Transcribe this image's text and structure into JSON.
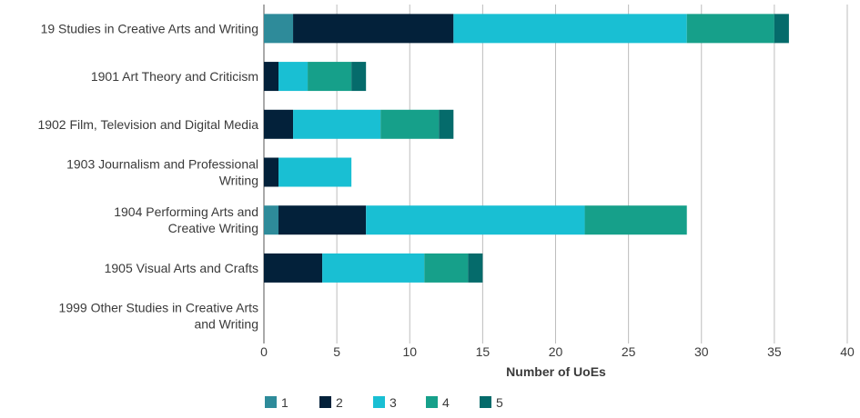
{
  "chart_data": {
    "type": "bar",
    "orientation": "horizontal",
    "stacked": true,
    "categories": [
      [
        "19 Studies in Creative Arts and Writing"
      ],
      [
        "1901 Art Theory and Criticism"
      ],
      [
        "1902 Film, Television and Digital Media"
      ],
      [
        "1903 Journalism and Professional",
        "Writing"
      ],
      [
        "1904 Performing Arts and",
        "Creative Writing"
      ],
      [
        "1905 Visual Arts and Crafts"
      ],
      [
        "1999 Other Studies in Creative Arts",
        "and Writing"
      ]
    ],
    "series": [
      {
        "name": "1",
        "color": "#2e8b9a",
        "values": [
          2,
          0,
          0,
          0,
          1,
          0,
          0
        ]
      },
      {
        "name": "2",
        "color": "#03213a",
        "values": [
          11,
          1,
          2,
          1,
          6,
          4,
          0
        ]
      },
      {
        "name": "3",
        "color": "#19bfd3",
        "values": [
          16,
          2,
          6,
          5,
          15,
          7,
          0
        ]
      },
      {
        "name": "4",
        "color": "#16a08a",
        "values": [
          6,
          3,
          4,
          0,
          7,
          3,
          0
        ]
      },
      {
        "name": "5",
        "color": "#056b6b",
        "values": [
          1,
          1,
          1,
          0,
          0,
          1,
          0
        ]
      }
    ],
    "xlabel": "Number of UoEs",
    "ylabel": "",
    "xlim": [
      0,
      40
    ],
    "xticks": [
      0,
      5,
      10,
      15,
      20,
      25,
      30,
      35,
      40
    ],
    "grid": true,
    "legend_position": "bottom-left"
  }
}
